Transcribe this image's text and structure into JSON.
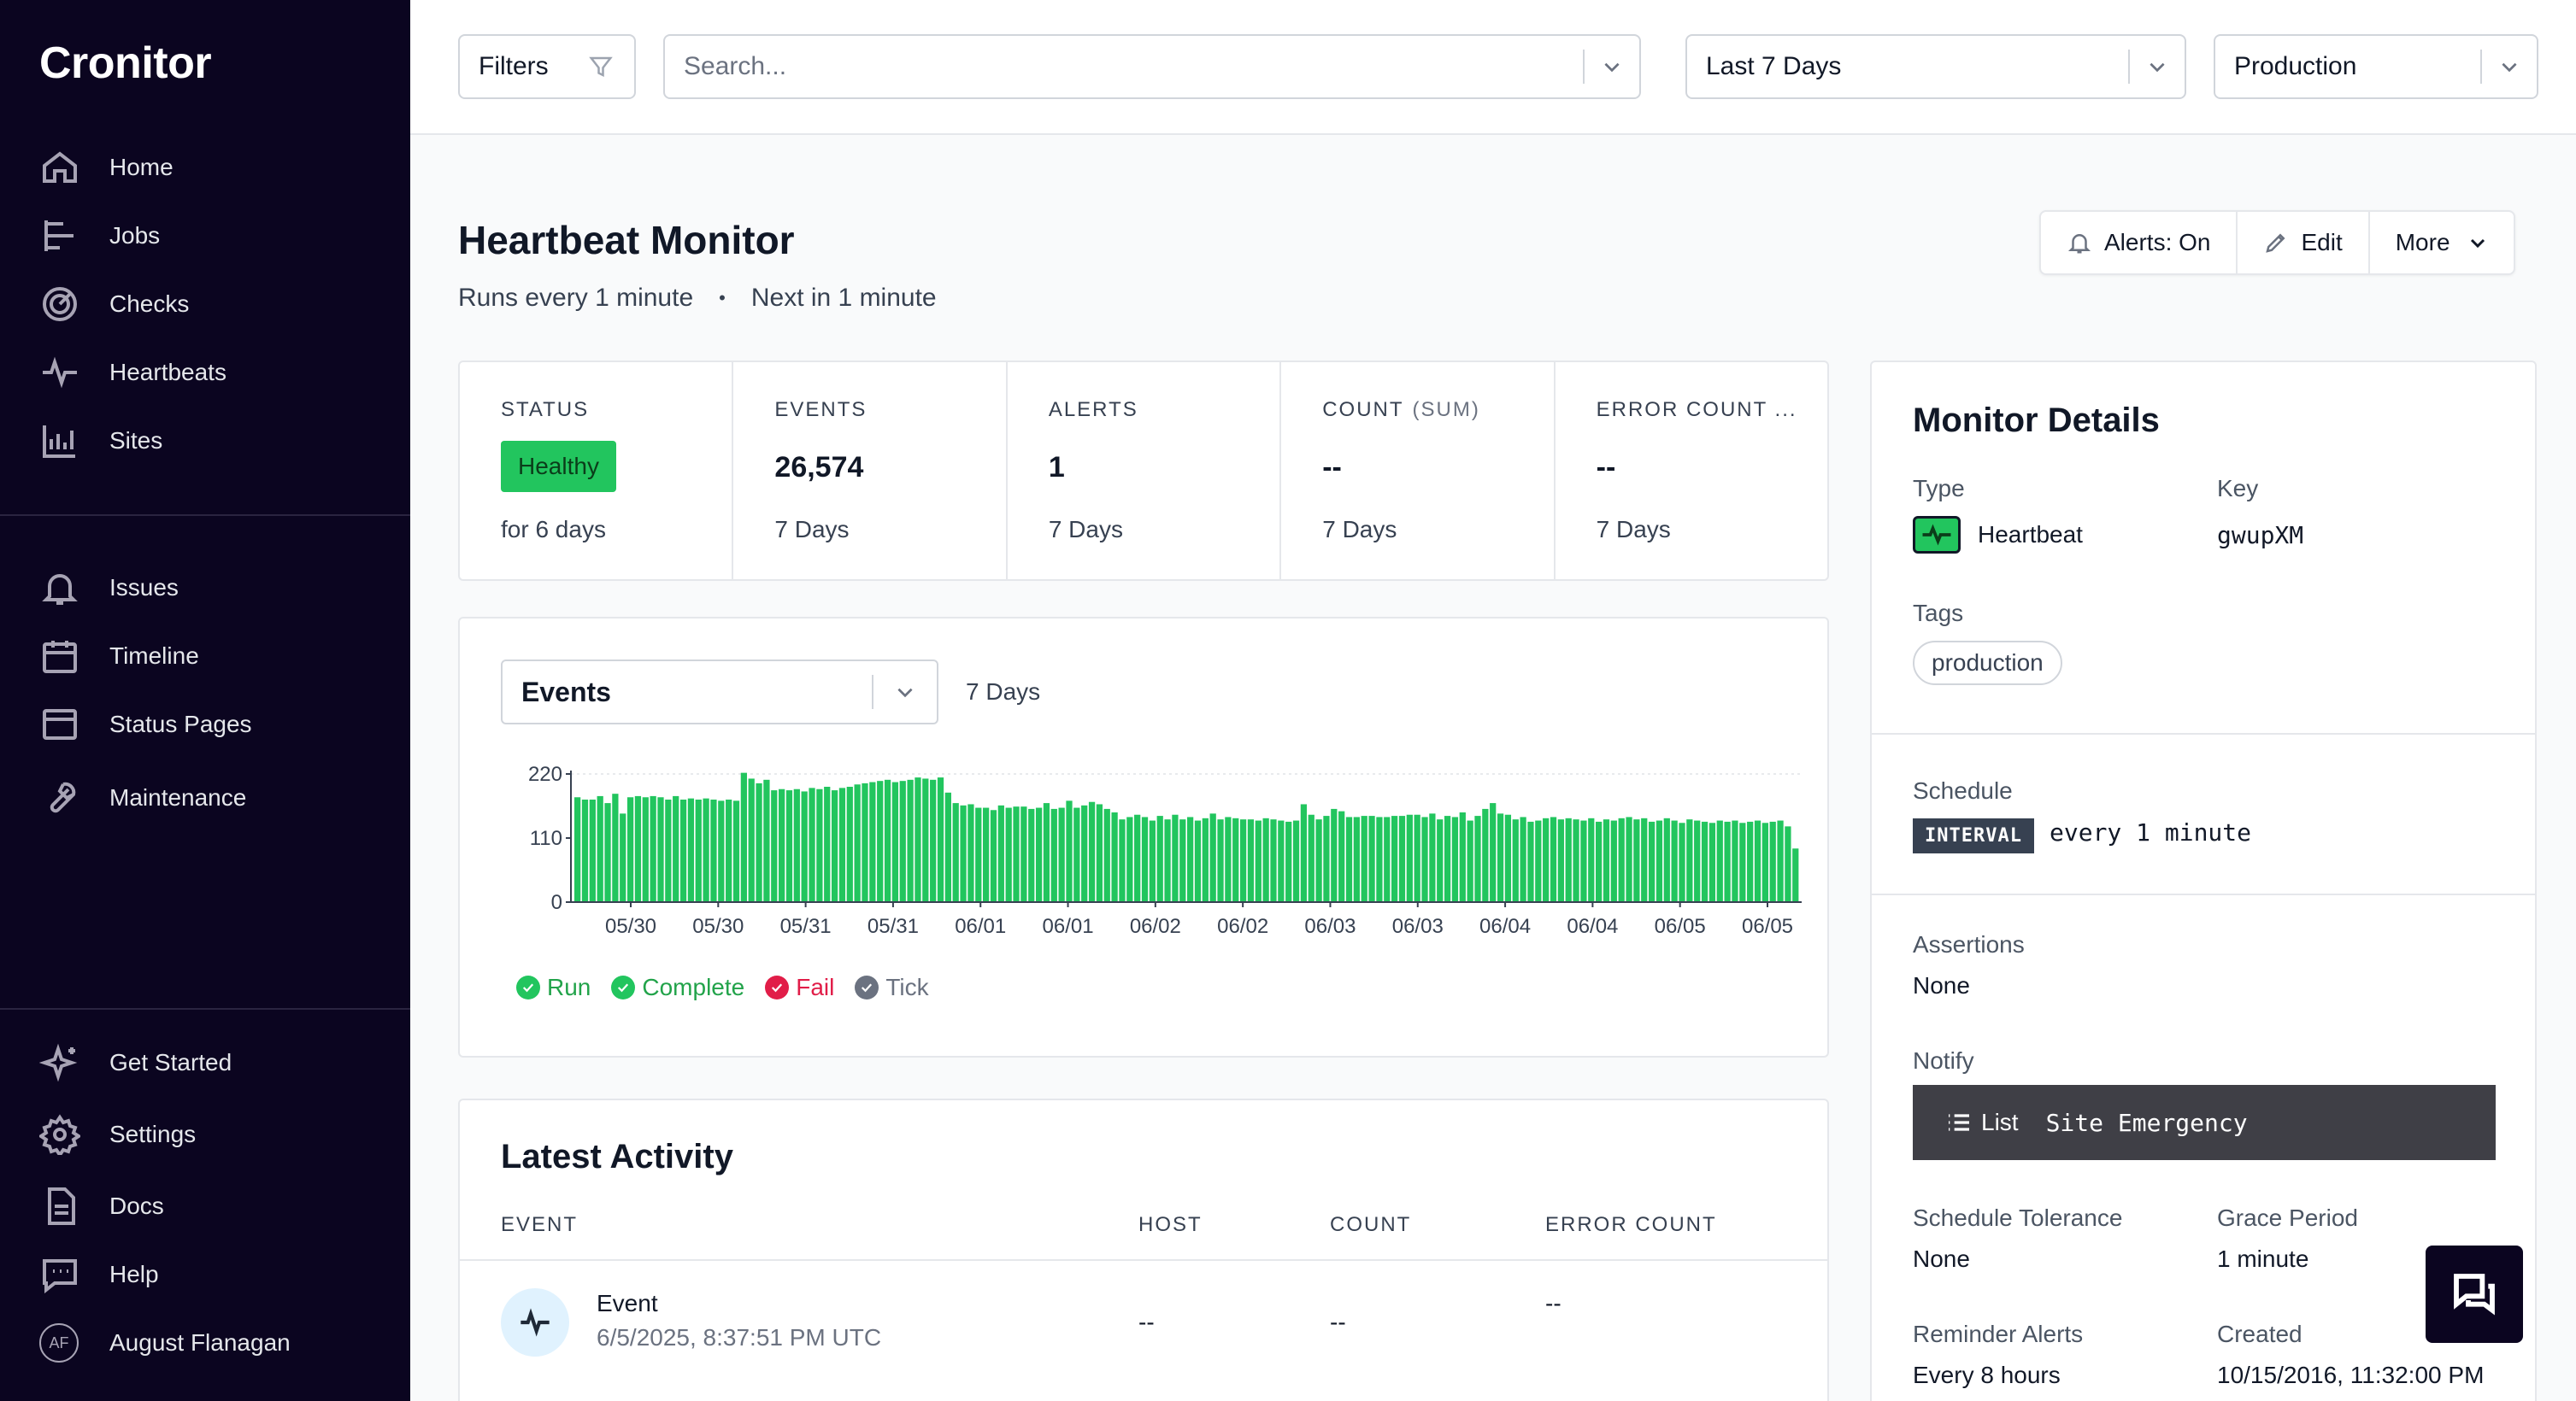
{
  "app": {
    "name": "Cronitor"
  },
  "sidebar": {
    "primary": [
      {
        "label": "Home",
        "icon": "home-icon"
      },
      {
        "label": "Jobs",
        "icon": "jobs-icon"
      },
      {
        "label": "Checks",
        "icon": "checks-icon"
      },
      {
        "label": "Heartbeats",
        "icon": "heartbeat-icon"
      },
      {
        "label": "Sites",
        "icon": "sites-icon"
      }
    ],
    "secondary": [
      {
        "label": "Issues",
        "icon": "bell-icon"
      },
      {
        "label": "Timeline",
        "icon": "calendar-icon"
      },
      {
        "label": "Status Pages",
        "icon": "browser-icon"
      },
      {
        "label": "Maintenance",
        "icon": "wrench-icon"
      }
    ],
    "footer": [
      {
        "label": "Get Started",
        "icon": "sparkle-icon"
      },
      {
        "label": "Settings",
        "icon": "gear-icon"
      },
      {
        "label": "Docs",
        "icon": "document-icon"
      },
      {
        "label": "Help",
        "icon": "chat-icon"
      }
    ],
    "user": {
      "initials": "AF",
      "name": "August Flanagan"
    }
  },
  "topbar": {
    "filters_label": "Filters",
    "search_placeholder": "Search...",
    "time_range": "Last 7 Days",
    "environment": "Production"
  },
  "monitor": {
    "title": "Heartbeat Monitor",
    "schedule_text": "Runs every 1 minute",
    "next_text": "Next in 1 minute",
    "alerts_label": "Alerts: On",
    "edit_label": "Edit",
    "more_label": "More"
  },
  "stats": [
    {
      "label": "STATUS",
      "value": "Healthy",
      "sub": "for 6 days"
    },
    {
      "label": "EVENTS",
      "value": "26,574",
      "sub": "7 Days"
    },
    {
      "label": "ALERTS",
      "value": "1",
      "sub": "7 Days"
    },
    {
      "label": "COUNT",
      "label_suffix": "(SUM)",
      "value": "--",
      "sub": "7 Days"
    },
    {
      "label": "ERROR COUNT ...",
      "value": "--",
      "sub": "7 Days"
    }
  ],
  "chart_panel": {
    "metric_select": "Events",
    "range": "7 Days",
    "legend": [
      {
        "label": "Run",
        "color": "#22c55e"
      },
      {
        "label": "Complete",
        "color": "#22c55e"
      },
      {
        "label": "Fail",
        "color": "#e11d48"
      },
      {
        "label": "Tick",
        "color": "#6b7280"
      }
    ]
  },
  "chart_data": {
    "type": "bar",
    "ylim": [
      0,
      220
    ],
    "y_ticks": [
      "220",
      "110",
      "0"
    ],
    "x_tick_labels": [
      "05/30",
      "05/30",
      "05/31",
      "05/31",
      "06/01",
      "06/01",
      "06/02",
      "06/02",
      "06/03",
      "06/03",
      "06/04",
      "06/04",
      "06/05",
      "06/05"
    ],
    "bar_color": "#22c55e",
    "series": [
      {
        "name": "Events",
        "values": [
          180,
          176,
          176,
          182,
          170,
          186,
          152,
          180,
          182,
          180,
          182,
          180,
          176,
          182,
          176,
          178,
          176,
          178,
          176,
          174,
          176,
          174,
          222,
          212,
          204,
          210,
          192,
          194,
          192,
          194,
          190,
          196,
          194,
          198,
          192,
          196,
          198,
          202,
          204,
          206,
          208,
          210,
          206,
          208,
          210,
          214,
          212,
          210,
          214,
          188,
          170,
          166,
          168,
          162,
          162,
          158,
          166,
          162,
          164,
          164,
          160,
          162,
          170,
          160,
          162,
          174,
          162,
          166,
          172,
          168,
          160,
          154,
          142,
          146,
          150,
          146,
          140,
          148,
          142,
          150,
          142,
          146,
          140,
          144,
          152,
          142,
          146,
          144,
          142,
          142,
          140,
          144,
          142,
          140,
          138,
          140,
          168,
          150,
          142,
          148,
          160,
          156,
          146,
          146,
          148,
          148,
          146,
          146,
          148,
          148,
          150,
          150,
          146,
          152,
          142,
          148,
          146,
          154,
          140,
          148,
          160,
          170,
          152,
          150,
          142,
          146,
          138,
          140,
          144,
          146,
          142,
          144,
          142,
          140,
          144,
          138,
          142,
          140,
          144,
          146,
          142,
          144,
          138,
          140,
          144,
          140,
          136,
          142,
          140,
          138,
          136,
          140,
          138,
          140,
          136,
          138,
          140,
          136,
          138,
          140,
          130,
          92
        ]
      }
    ]
  },
  "activity": {
    "title": "Latest Activity",
    "columns": [
      "EVENT",
      "HOST",
      "COUNT",
      "ERROR COUNT"
    ],
    "rows": [
      {
        "event": "Event",
        "time": "6/5/2025, 8:37:51 PM UTC",
        "host": "--",
        "count": "--",
        "error_count": "--"
      }
    ]
  },
  "details": {
    "title": "Monitor Details",
    "type_label": "Type",
    "type_value": "Heartbeat",
    "key_label": "Key",
    "key_value": "gwupXM",
    "tags_label": "Tags",
    "tags": [
      "production"
    ],
    "schedule_label": "Schedule",
    "schedule_badge": "INTERVAL",
    "schedule_value": "every 1 minute",
    "assertions_label": "Assertions",
    "assertions_value": "None",
    "notify_label": "Notify",
    "notify_type": "List",
    "notify_value": "Site Emergency",
    "tolerance_label": "Schedule Tolerance",
    "tolerance_value": "None",
    "grace_label": "Grace Period",
    "grace_value": "1 minute",
    "reminder_label": "Reminder Alerts",
    "reminder_value": "Every 8 hours",
    "created_label": "Created",
    "created_value": "10/15/2016, 11:32:00 PM"
  }
}
